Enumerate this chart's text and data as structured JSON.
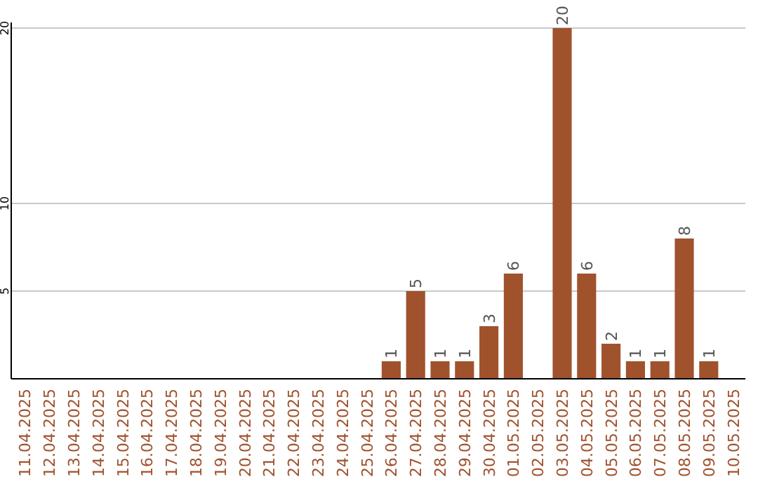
{
  "chart_data": {
    "type": "bar",
    "categories": [
      "11.04.2025",
      "12.04.2025",
      "13.04.2025",
      "14.04.2025",
      "15.04.2025",
      "16.04.2025",
      "17.04.2025",
      "18.04.2025",
      "19.04.2025",
      "20.04.2025",
      "21.04.2025",
      "22.04.2025",
      "23.04.2025",
      "24.04.2025",
      "25.04.2025",
      "26.04.2025",
      "27.04.2025",
      "28.04.2025",
      "29.04.2025",
      "30.04.2025",
      "01.05.2025",
      "02.05.2025",
      "03.05.2025",
      "04.05.2025",
      "05.05.2025",
      "06.05.2025",
      "07.05.2025",
      "08.05.2025",
      "09.05.2025",
      "10.05.2025"
    ],
    "values": [
      0,
      0,
      0,
      0,
      0,
      0,
      0,
      0,
      0,
      0,
      0,
      0,
      0,
      0,
      0,
      1,
      5,
      1,
      1,
      3,
      6,
      0,
      20,
      6,
      2,
      1,
      1,
      8,
      1,
      0
    ],
    "value_labels": [
      null,
      null,
      null,
      null,
      null,
      null,
      null,
      null,
      null,
      null,
      null,
      null,
      null,
      null,
      null,
      "1",
      "5",
      "1",
      "1",
      "3",
      "6",
      null,
      "20",
      "6",
      "2",
      "1",
      "1",
      "8",
      "1",
      null
    ],
    "color": "#a0522d",
    "ylim": [
      0,
      20
    ],
    "yticks": [
      5,
      10,
      20
    ],
    "grid": "y"
  }
}
